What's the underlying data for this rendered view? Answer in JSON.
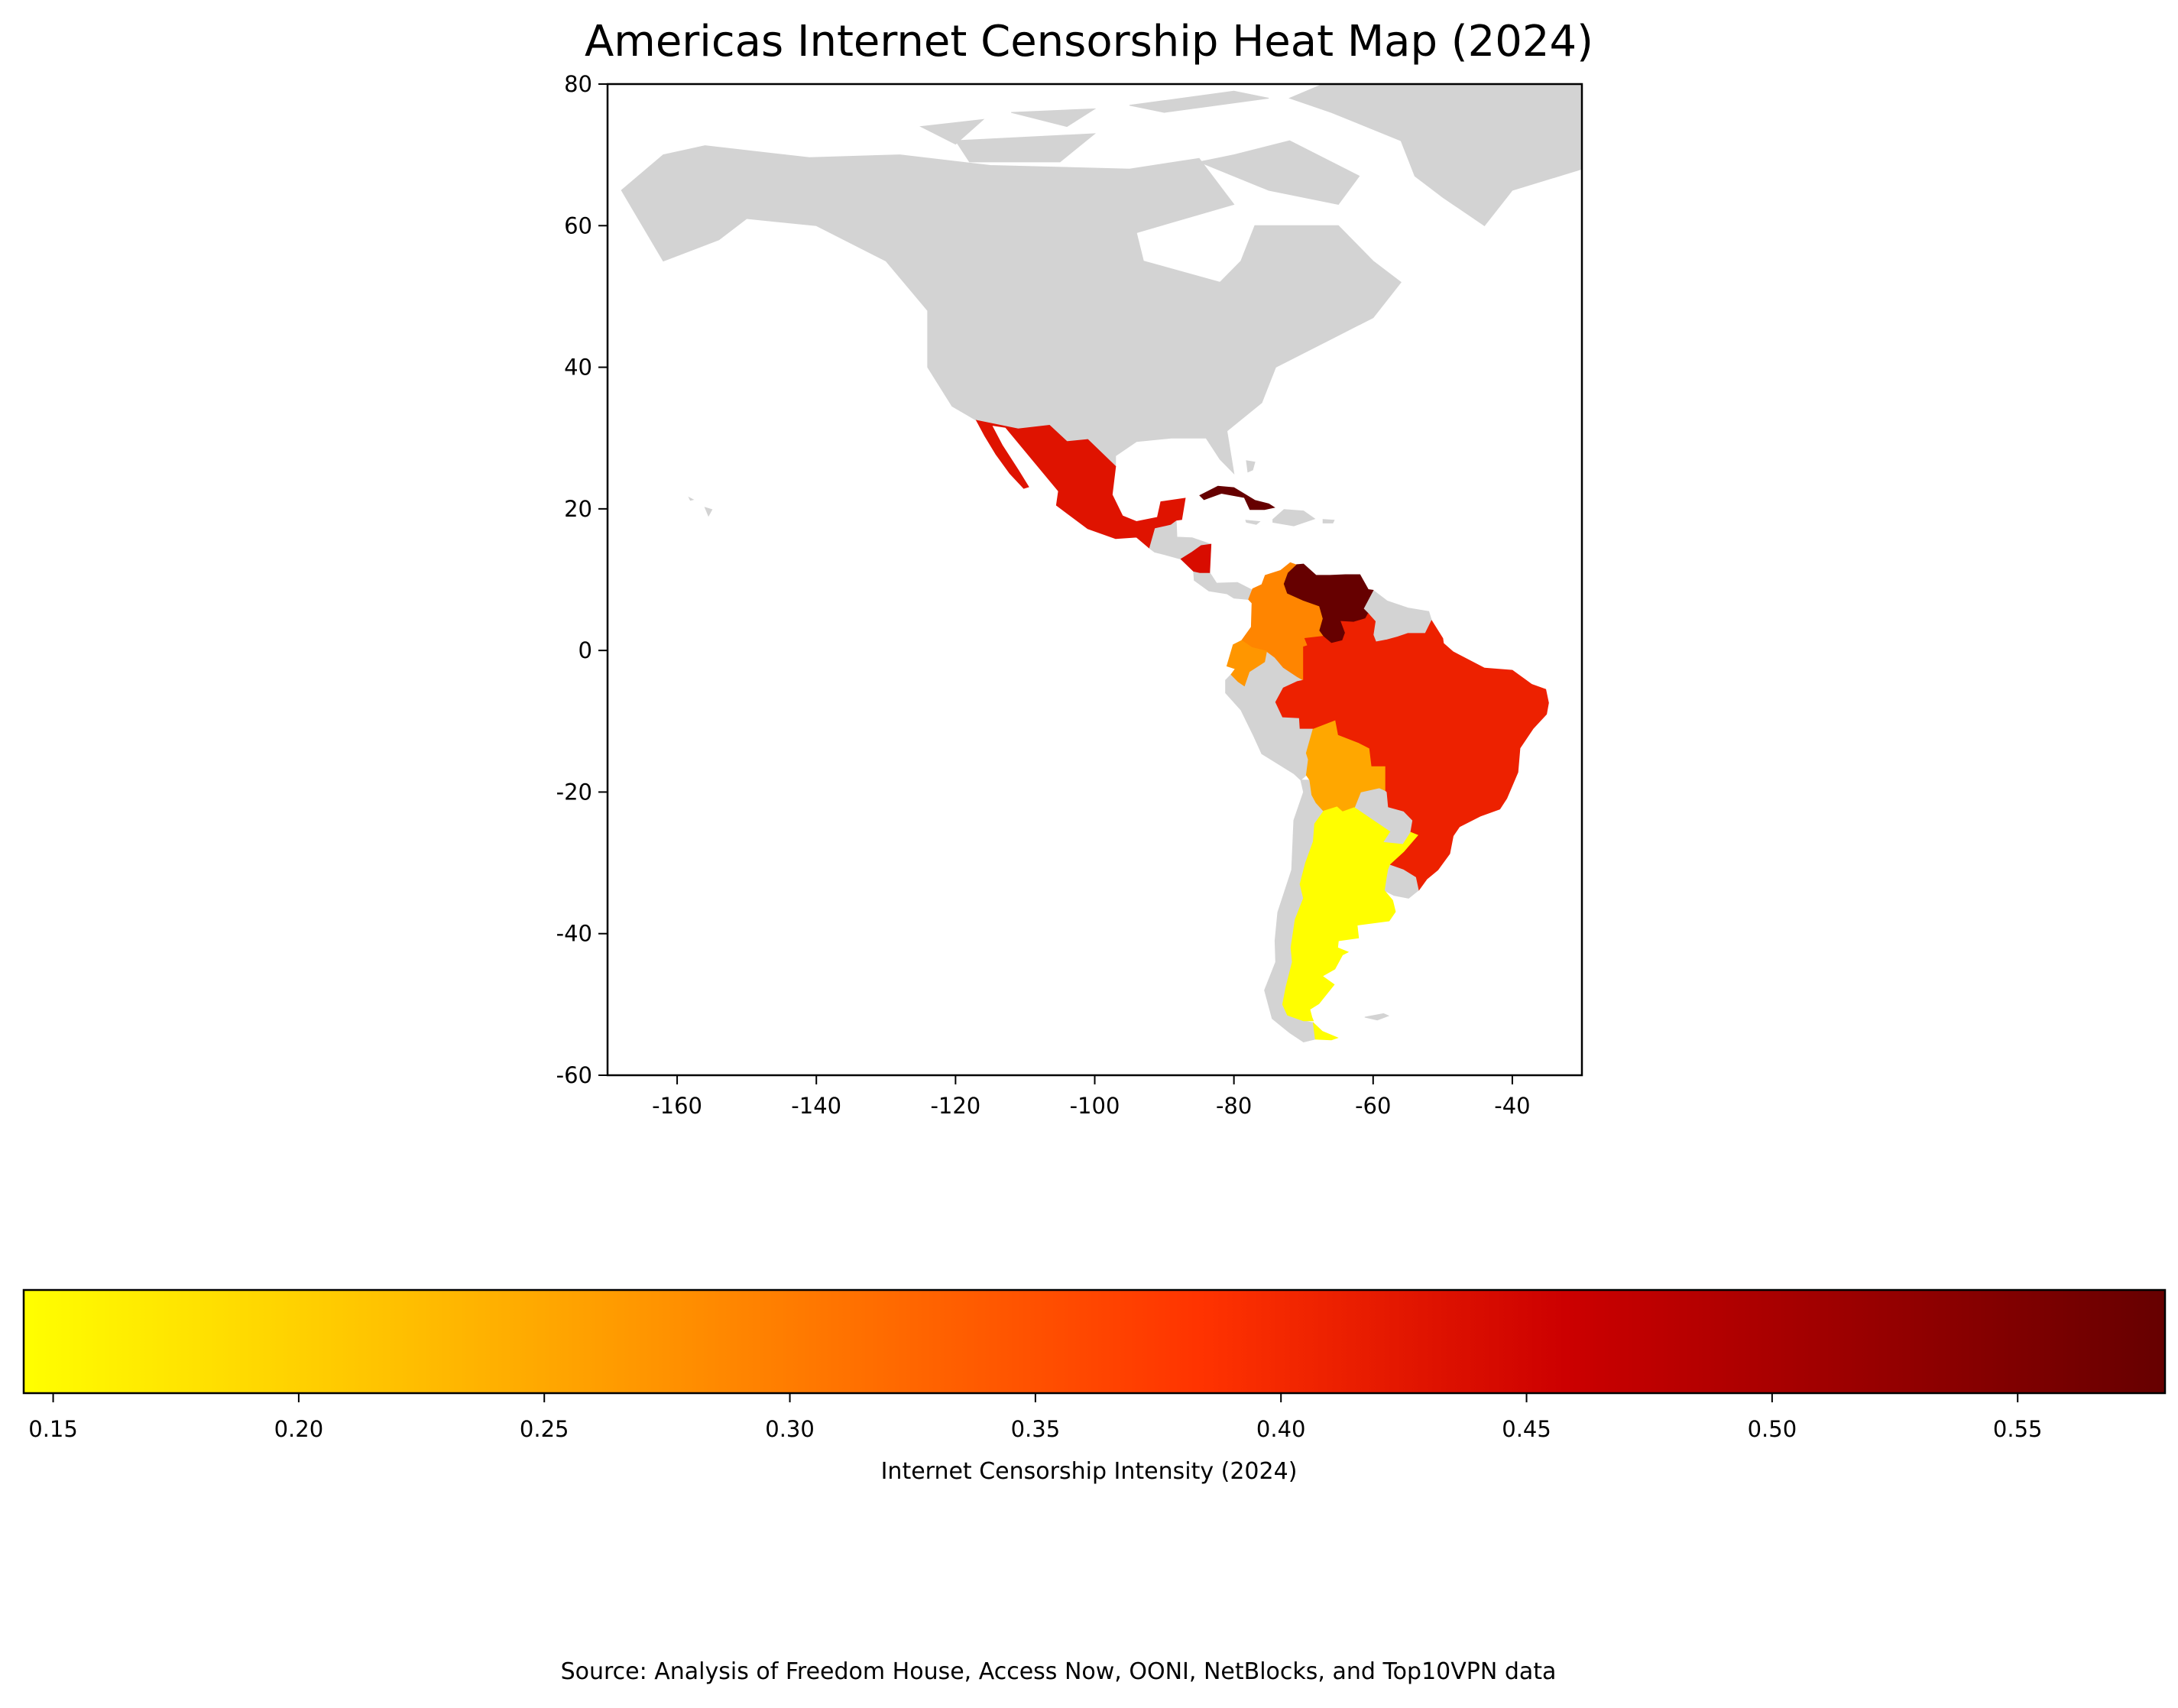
{
  "chart_data": {
    "type": "choropleth",
    "title": "Americas Internet Censorship Heat Map (2024)",
    "xlim": [
      -170,
      -30
    ],
    "ylim": [
      -60,
      80
    ],
    "xticks": [
      "-160",
      "-140",
      "-120",
      "-100",
      "-80",
      "-60",
      "-40"
    ],
    "yticks": [
      "80",
      "60",
      "40",
      "20",
      "0",
      "-20",
      "-40",
      "-60"
    ],
    "no_data_color": "#D3D3D3",
    "colorbar": {
      "label": "Internet Censorship Intensity (2024)",
      "range": [
        0.144,
        0.58
      ],
      "ticks": [
        "0.15",
        "0.20",
        "0.25",
        "0.30",
        "0.35",
        "0.40",
        "0.45",
        "0.50",
        "0.55"
      ],
      "colors": [
        "#FFFF00",
        "#FFA500",
        "#FF3300",
        "#CC0000",
        "#660000"
      ],
      "placement": "bottom"
    },
    "regions": [
      {
        "country": "Mexico",
        "value": 0.43
      },
      {
        "country": "Cuba",
        "value": 0.58
      },
      {
        "country": "Nicaragua",
        "value": 0.44
      },
      {
        "country": "Venezuela",
        "value": 0.58
      },
      {
        "country": "Colombia",
        "value": 0.29
      },
      {
        "country": "Ecuador",
        "value": 0.27
      },
      {
        "country": "Bolivia",
        "value": 0.25
      },
      {
        "country": "Brazil",
        "value": 0.41
      },
      {
        "country": "Argentina",
        "value": 0.145
      }
    ]
  },
  "source": "Source: Analysis of Freedom House, Access Now, OONI, NetBlocks, and Top10VPN data"
}
